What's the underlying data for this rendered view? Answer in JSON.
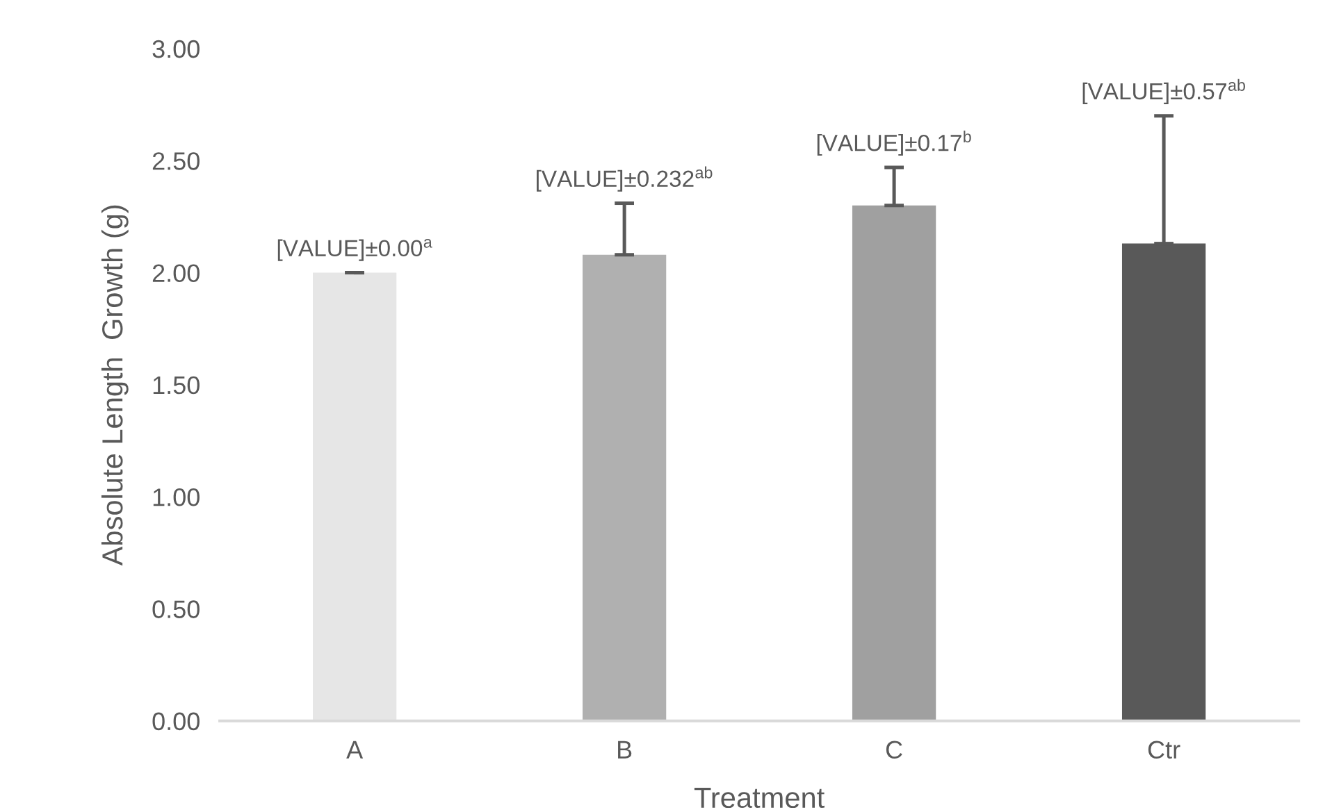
{
  "chart_data": {
    "type": "bar",
    "xlabel": "Treatment",
    "ylabel": "Absolute Length  Growth (g)",
    "categories": [
      "A",
      "B",
      "C",
      "Ctr"
    ],
    "values": [
      2.0,
      2.08,
      2.3,
      2.13
    ],
    "colors": [
      "#e6e6e6",
      "#b0b0b0",
      "#a0a0a0",
      "#595959"
    ],
    "errors": [
      [
        2.0,
        2.0
      ],
      [
        2.08,
        2.31
      ],
      [
        2.3,
        2.47
      ],
      [
        2.13,
        2.7
      ]
    ],
    "annotations": [
      {
        "text": "[VALUE]±0.00$^{a}$",
        "x": "A",
        "y": 2.0
      },
      {
        "text": "[VALUE]±0.232$^{ab}$",
        "x": "B",
        "y": 2.31
      },
      {
        "text": "[VALUE]±0.17$^{b}$",
        "x": "C",
        "y": 2.47
      },
      {
        "text": "[VALUE]±0.57$^{ab}$",
        "x": "Ctr",
        "y": 2.7
      }
    ],
    "ylim": [
      0,
      3
    ],
    "yticks": [
      {
        "value": 0,
        "label": "0.00"
      },
      {
        "value": 0.5,
        "label": "0.50"
      },
      {
        "value": 1,
        "label": "1.00"
      },
      {
        "value": 1.5,
        "label": "1.50"
      },
      {
        "value": 2,
        "label": "2.00"
      },
      {
        "value": 2.5,
        "label": "2.50"
      },
      {
        "value": 3,
        "label": "3.00"
      }
    ],
    "grid": false
  }
}
